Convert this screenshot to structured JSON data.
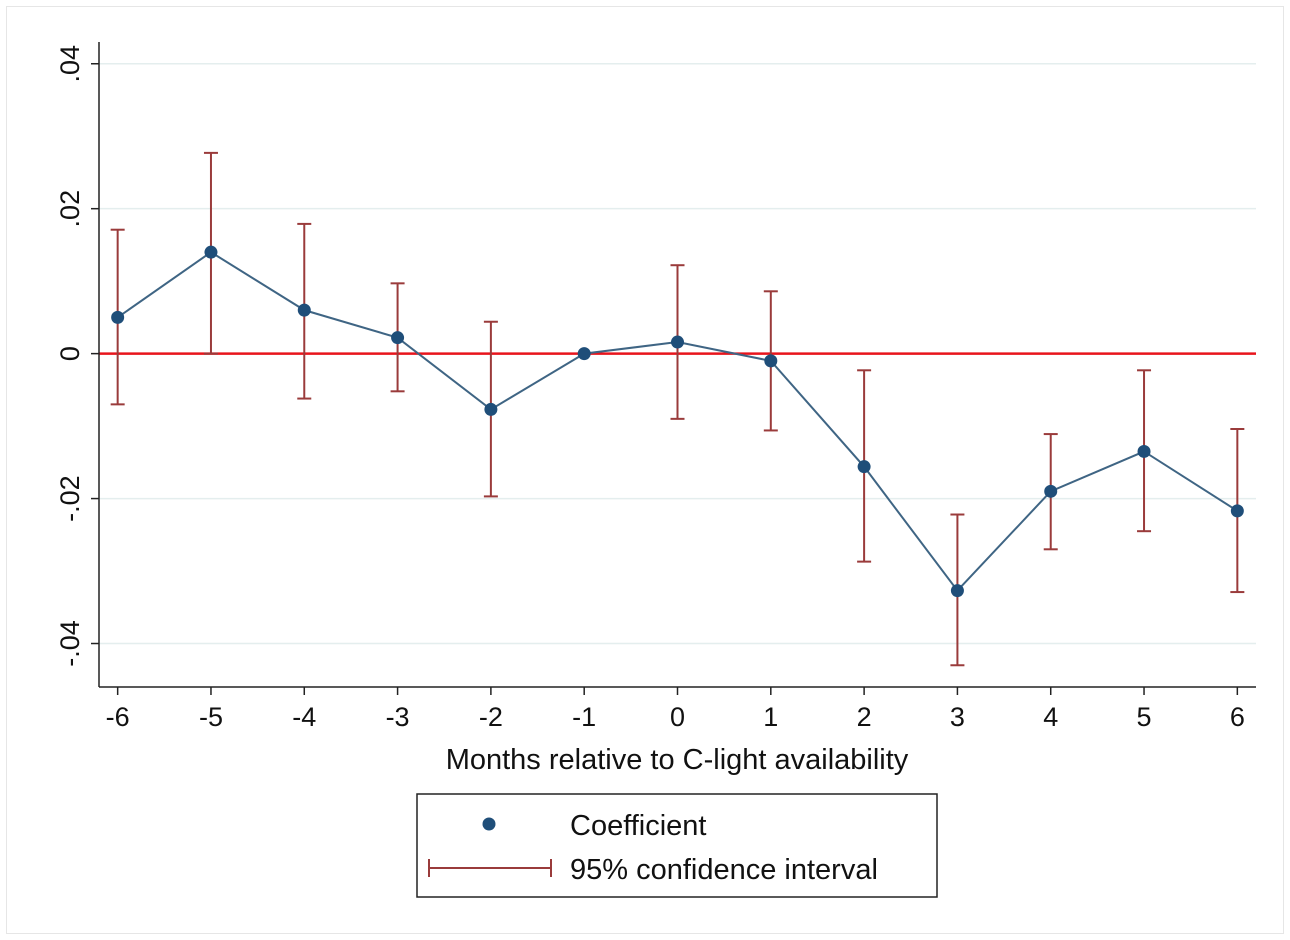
{
  "chart_data": {
    "type": "scatter",
    "xlabel": "Months relative to C-light availability",
    "ylabel": "",
    "x": [
      -6,
      -5,
      -4,
      -3,
      -2,
      -1,
      0,
      1,
      2,
      3,
      4,
      5,
      6
    ],
    "x_tick_labels": [
      "-6",
      "-5",
      "-4",
      "-3",
      "-2",
      "-1",
      "0",
      "1",
      "2",
      "3",
      "4",
      "5",
      "6"
    ],
    "y_ticks": [
      -0.04,
      -0.02,
      0,
      0.02,
      0.04
    ],
    "y_tick_labels": [
      "-.04",
      "-.02",
      "0",
      ".02",
      ".04"
    ],
    "xlim": [
      -6.2,
      6.2
    ],
    "ylim": [
      -0.046,
      0.043
    ],
    "grid": true,
    "reference_line": {
      "y": 0,
      "color": "#e8141c"
    },
    "series": [
      {
        "name": "Coefficient",
        "color": "#1f4e79",
        "values": [
          0.005,
          0.014,
          0.006,
          0.0022,
          -0.0077,
          0.0,
          0.0016,
          -0.001,
          -0.0156,
          -0.0327,
          -0.019,
          -0.0135,
          -0.0217
        ]
      },
      {
        "name": "95% confidence interval",
        "color": "#9a3b3b",
        "lower": [
          -0.007,
          0.0,
          -0.0062,
          -0.0052,
          -0.0197,
          0.0,
          -0.009,
          -0.0106,
          -0.0287,
          -0.043,
          -0.027,
          -0.0245,
          -0.0329
        ],
        "upper": [
          0.0171,
          0.0277,
          0.0179,
          0.0097,
          0.0044,
          0.0,
          0.0122,
          0.0086,
          -0.0023,
          -0.0222,
          -0.0111,
          -0.0023,
          -0.0104
        ]
      }
    ],
    "legend": {
      "position": "bottom-center",
      "entries": [
        "Coefficient",
        "95% confidence interval"
      ]
    }
  }
}
